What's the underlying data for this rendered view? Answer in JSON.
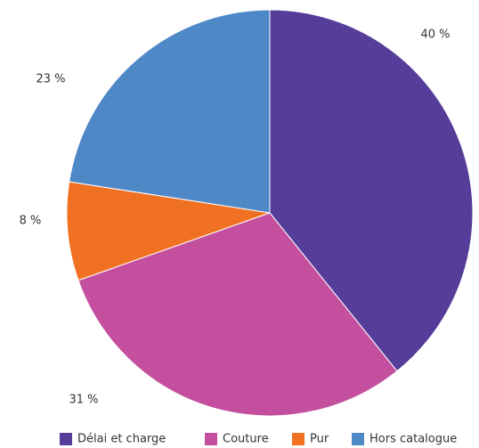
{
  "chart_data": {
    "type": "pie",
    "categories": [
      "Délai et charge",
      "Couture",
      "Pur",
      "Hors catalogue"
    ],
    "values": [
      40,
      31,
      8,
      23
    ],
    "value_labels": [
      "40 %",
      "31 %",
      "8 %",
      "23 %"
    ],
    "colors": [
      "#553d99",
      "#c44f9f",
      "#f07122",
      "#4f88c7"
    ],
    "start_angle_deg": 0,
    "direction": "clockwise",
    "legend_position": "bottom"
  }
}
